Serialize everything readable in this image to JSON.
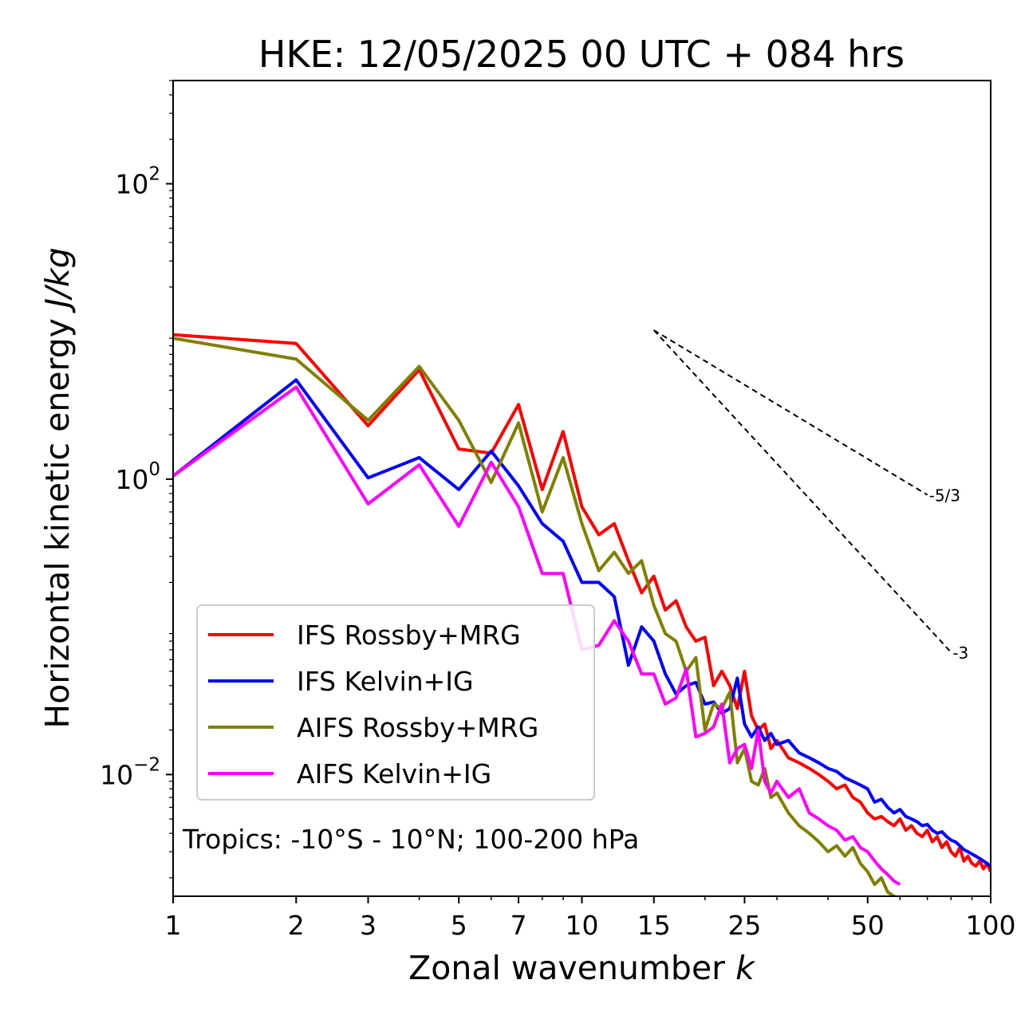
{
  "chart_data": {
    "type": "line",
    "title": "HKE: 12/05/2025 00 UTC + 084 hrs",
    "xlabel": "Zonal wavenumber",
    "xlabel_symbol": "k",
    "ylabel": "Horizontal kinetic energy",
    "ylabel_units": "J/kg",
    "xscale": "log",
    "yscale": "log",
    "xlim": [
      1,
      100
    ],
    "ylim": [
      0.0015,
      500
    ],
    "xticks": [
      1,
      2,
      3,
      5,
      7,
      10,
      15,
      25,
      50,
      100
    ],
    "xtick_labels": [
      "1",
      "2",
      "3",
      "5",
      "7",
      "10",
      "15",
      "25",
      "50",
      "100"
    ],
    "yticks": [
      0.01,
      1,
      100
    ],
    "ytick_labels": [
      {
        "base": "10",
        "exp": "−2"
      },
      {
        "base": "10",
        "exp": "0"
      },
      {
        "base": "10",
        "exp": "2"
      }
    ],
    "grid": false,
    "legend_position": "lower-left",
    "annotation": "Tropics: -10°S - 10°N; 100-200 hPa",
    "reference_slopes": [
      {
        "label": "-5/3",
        "slope": -1.6667,
        "x0": 15,
        "y0": 10.2,
        "x1": 70
      },
      {
        "label": "-3",
        "slope": -3,
        "x0": 15,
        "y0": 10.2,
        "x1": 80
      }
    ],
    "series": [
      {
        "name": "IFS Rossby+MRG",
        "color": "#ff0000",
        "x": [
          1,
          2,
          3,
          4,
          5,
          6,
          7,
          8,
          9,
          10,
          11,
          12,
          13,
          14,
          15,
          16,
          17,
          18,
          19,
          20,
          21,
          22,
          23,
          24,
          25,
          26,
          27,
          28,
          29,
          30,
          32,
          34,
          36,
          38,
          40,
          42,
          44,
          46,
          48,
          50,
          52,
          54,
          56,
          58,
          60,
          62,
          64,
          66,
          68,
          70,
          72,
          74,
          76,
          78,
          80,
          82,
          84,
          86,
          88,
          90,
          92,
          94,
          96,
          98,
          100
        ],
        "values": [
          9.5,
          8.3,
          2.3,
          5.5,
          1.6,
          1.5,
          3.2,
          0.85,
          2.1,
          0.65,
          0.42,
          0.5,
          0.28,
          0.17,
          0.22,
          0.13,
          0.15,
          0.1,
          0.08,
          0.085,
          0.04,
          0.05,
          0.04,
          0.028,
          0.05,
          0.025,
          0.02,
          0.022,
          0.015,
          0.017,
          0.013,
          0.012,
          0.011,
          0.01,
          0.009,
          0.008,
          0.0085,
          0.007,
          0.0065,
          0.0055,
          0.005,
          0.0052,
          0.0048,
          0.0045,
          0.005,
          0.0042,
          0.0045,
          0.004,
          0.0038,
          0.0042,
          0.0035,
          0.0038,
          0.0032,
          0.0035,
          0.003,
          0.0028,
          0.0032,
          0.0026,
          0.0028,
          0.0025,
          0.0024,
          0.0026,
          0.0023,
          0.0025,
          0.0022
        ]
      },
      {
        "name": "IFS Kelvin+IG",
        "color": "#0000ff",
        "x": [
          1,
          2,
          3,
          4,
          5,
          6,
          7,
          8,
          9,
          10,
          11,
          12,
          13,
          14,
          15,
          16,
          17,
          18,
          19,
          20,
          21,
          22,
          23,
          24,
          25,
          26,
          27,
          28,
          29,
          30,
          32,
          34,
          36,
          38,
          40,
          42,
          44,
          46,
          48,
          50,
          52,
          54,
          56,
          58,
          60,
          62,
          64,
          66,
          68,
          70,
          72,
          74,
          76,
          78,
          80,
          82,
          84,
          86,
          88,
          90,
          92,
          94,
          96,
          98,
          100
        ],
        "values": [
          1.05,
          4.7,
          1.02,
          1.4,
          0.85,
          1.55,
          0.9,
          0.5,
          0.38,
          0.2,
          0.2,
          0.16,
          0.055,
          0.1,
          0.08,
          0.048,
          0.035,
          0.04,
          0.042,
          0.03,
          0.031,
          0.026,
          0.028,
          0.045,
          0.022,
          0.018,
          0.021,
          0.017,
          0.019,
          0.016,
          0.017,
          0.014,
          0.013,
          0.012,
          0.011,
          0.0105,
          0.0095,
          0.009,
          0.0085,
          0.008,
          0.0065,
          0.0068,
          0.006,
          0.0055,
          0.0058,
          0.0052,
          0.005,
          0.0048,
          0.0045,
          0.0046,
          0.0042,
          0.004,
          0.0041,
          0.0038,
          0.0036,
          0.0035,
          0.0033,
          0.0031,
          0.003,
          0.0029,
          0.0028,
          0.0027,
          0.0026,
          0.0025,
          0.0024
        ]
      },
      {
        "name": "AIFS Rossby+MRG",
        "color": "#808000",
        "x": [
          1,
          2,
          3,
          4,
          5,
          6,
          7,
          8,
          9,
          10,
          11,
          12,
          13,
          14,
          15,
          16,
          17,
          18,
          19,
          20,
          21,
          22,
          23,
          24,
          25,
          26,
          27,
          28,
          29,
          30,
          32,
          34,
          36,
          38,
          40,
          42,
          44,
          46,
          48,
          50,
          52,
          54,
          56,
          58,
          60
        ],
        "values": [
          9.0,
          6.5,
          2.5,
          5.8,
          2.5,
          0.95,
          2.4,
          0.6,
          1.4,
          0.5,
          0.24,
          0.32,
          0.23,
          0.28,
          0.14,
          0.09,
          0.08,
          0.05,
          0.062,
          0.02,
          0.03,
          0.028,
          0.036,
          0.012,
          0.015,
          0.009,
          0.0085,
          0.011,
          0.007,
          0.0075,
          0.0055,
          0.0045,
          0.004,
          0.0035,
          0.003,
          0.0033,
          0.0028,
          0.0032,
          0.0025,
          0.0022,
          0.0018,
          0.002,
          0.0016,
          0.0015,
          0.0014
        ]
      },
      {
        "name": "AIFS Kelvin+IG",
        "color": "#ff00ff",
        "x": [
          1,
          2,
          3,
          4,
          5,
          6,
          7,
          8,
          9,
          10,
          11,
          12,
          13,
          14,
          15,
          16,
          17,
          18,
          19,
          20,
          21,
          22,
          23,
          24,
          25,
          26,
          27,
          28,
          29,
          30,
          32,
          34,
          36,
          38,
          40,
          42,
          44,
          46,
          48,
          50,
          52,
          54,
          56,
          58,
          60
        ],
        "values": [
          1.05,
          4.2,
          0.68,
          1.25,
          0.48,
          1.3,
          0.65,
          0.23,
          0.23,
          0.07,
          0.075,
          0.11,
          0.08,
          0.048,
          0.048,
          0.03,
          0.033,
          0.052,
          0.018,
          0.019,
          0.021,
          0.03,
          0.012,
          0.015,
          0.016,
          0.011,
          0.02,
          0.009,
          0.0075,
          0.009,
          0.007,
          0.008,
          0.0055,
          0.005,
          0.0045,
          0.0042,
          0.0036,
          0.0038,
          0.0032,
          0.003,
          0.0026,
          0.0023,
          0.0021,
          0.0019,
          0.0018
        ]
      }
    ]
  }
}
